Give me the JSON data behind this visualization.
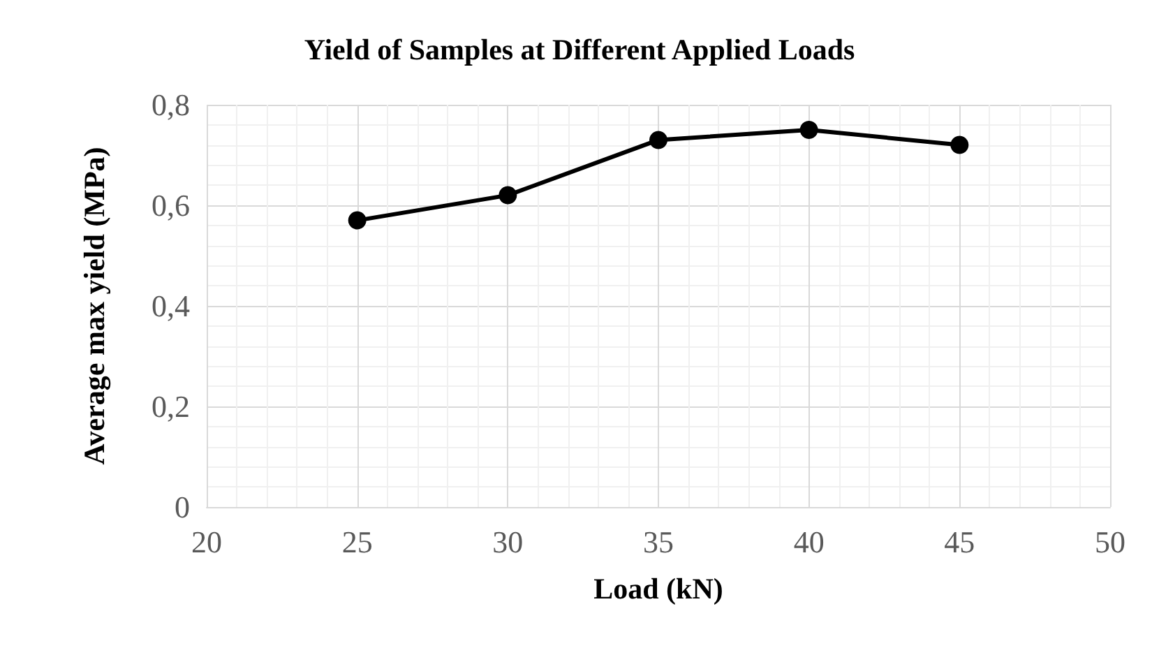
{
  "chart_data": {
    "type": "line",
    "title": "Yield of Samples at Different Applied Loads",
    "xlabel": "Load (kN)",
    "ylabel": "Average max yield (MPa)",
    "x": [
      25,
      30,
      35,
      40,
      45
    ],
    "series": [
      {
        "color": "#000000",
        "values": [
          0.57,
          0.62,
          0.73,
          0.75,
          0.72
        ]
      }
    ],
    "xlim": [
      20,
      50
    ],
    "xticks": [
      20,
      25,
      30,
      35,
      40,
      45,
      50
    ],
    "ylim": [
      0,
      0.8
    ],
    "yticks": [
      {
        "value": 0,
        "label": "0"
      },
      {
        "value": 0.2,
        "label": "0,2"
      },
      {
        "value": 0.4,
        "label": "0,4"
      },
      {
        "value": 0.6,
        "label": "0,6"
      },
      {
        "value": 0.8,
        "label": "0,8"
      }
    ],
    "grid": true,
    "marker": "circle",
    "line_style": "solid"
  }
}
